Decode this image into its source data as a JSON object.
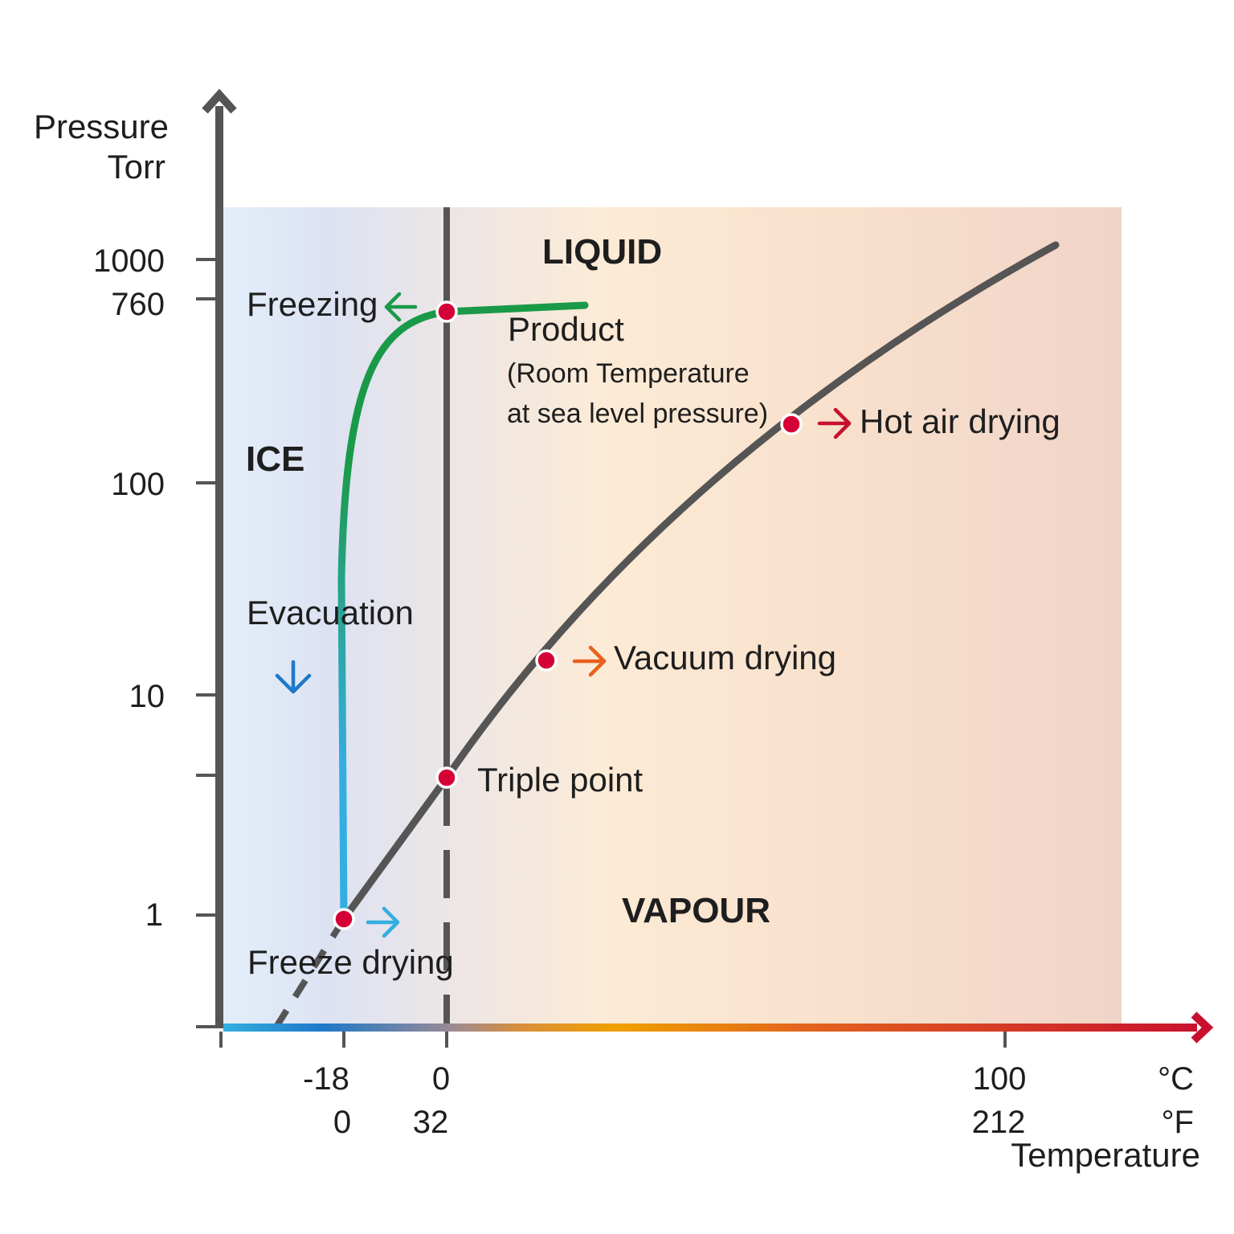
{
  "y_axis": {
    "title_line1": "Pressure",
    "title_line2": "Torr",
    "ticks": [
      "1000",
      "760",
      "100",
      "10",
      "1"
    ]
  },
  "x_axis": {
    "title": "Temperature",
    "celsius_ticks": [
      "-18",
      "0",
      "100"
    ],
    "fahrenheit_ticks": [
      "0",
      "32",
      "212"
    ],
    "celsius_unit": "°C",
    "fahrenheit_unit": "°F"
  },
  "regions": {
    "liquid": "LIQUID",
    "ice": "ICE",
    "vapour": "VAPOUR"
  },
  "labels": {
    "freezing": "Freezing",
    "product": "Product",
    "product_note_line1": "(Room Temperature",
    "product_note_line2": "at sea level pressure)",
    "hot_air_drying": "Hot air drying",
    "evacuation": "Evacuation",
    "vacuum_drying": "Vacuum drying",
    "triple_point": "Triple point",
    "freeze_drying": "Freeze drying"
  },
  "colors": {
    "axis": "#555555",
    "curve": "#555555",
    "freezing_path": "#1a9a48",
    "evacuation_path": "#33aee0",
    "point": "#d40036",
    "freezing_arrow": "#1a9a48",
    "evacuation_arrow": "#1f78c8",
    "freeze_drying_arrow": "#33aee0",
    "vacuum_drying_arrow": "#e8601c",
    "hot_air_drying_arrow": "#c8102e"
  }
}
